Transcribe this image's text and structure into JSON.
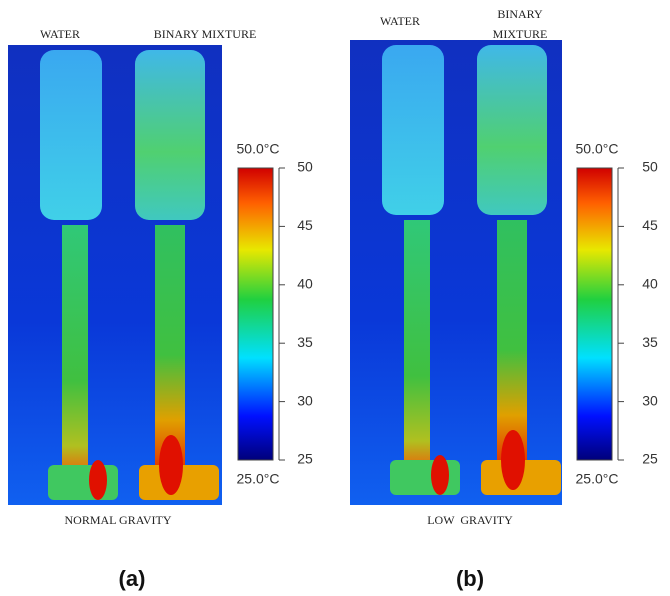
{
  "panels": [
    {
      "labels": {
        "water": "WATER",
        "mixture": [
          "BINARY MIXTURE"
        ]
      },
      "colorbar": {
        "max_label": "50.0°C",
        "min_label": "25.0°C",
        "ticks": [
          25,
          30,
          35,
          40,
          45,
          50
        ]
      },
      "caption": "NORMAL GRAVITY",
      "tag": "(a)"
    },
    {
      "labels": {
        "water": "WATER",
        "mixture": [
          "BINARY",
          "MIXTURE"
        ]
      },
      "colorbar": {
        "max_label": "50.0°C",
        "min_label": "25.0°C",
        "ticks": [
          25,
          30,
          35,
          40,
          45,
          50
        ]
      },
      "caption": "LOW  GRAVITY",
      "tag": "(b)"
    }
  ]
}
